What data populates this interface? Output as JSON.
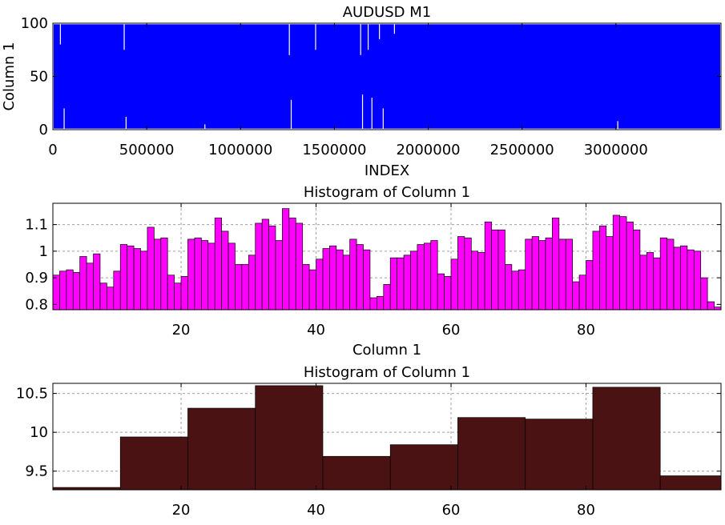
{
  "chart_data": [
    {
      "type": "area",
      "title": "AUDUSD M1",
      "xlabel": "INDEX",
      "ylabel": "Column 1",
      "xlim": [
        0,
        3560000
      ],
      "ylim": [
        0,
        100
      ],
      "x_ticks": [
        0,
        500000,
        1000000,
        1500000,
        2000000,
        2500000,
        3000000
      ],
      "y_ticks": [
        0,
        50,
        100
      ],
      "series_color": "#0000ff",
      "fill_range": [
        1,
        99
      ],
      "notes_gaps": [
        {
          "x": 40000,
          "from": 80,
          "to": 100
        },
        {
          "x": 60000,
          "from": 0,
          "to": 20
        },
        {
          "x": 380000,
          "from": 75,
          "to": 100
        },
        {
          "x": 390000,
          "from": 0,
          "to": 12
        },
        {
          "x": 810000,
          "from": 0,
          "to": 5
        },
        {
          "x": 1260000,
          "from": 70,
          "to": 100
        },
        {
          "x": 1270000,
          "from": 0,
          "to": 28
        },
        {
          "x": 1400000,
          "from": 75,
          "to": 100
        },
        {
          "x": 1640000,
          "from": 70,
          "to": 100
        },
        {
          "x": 1650000,
          "from": 0,
          "to": 33
        },
        {
          "x": 1680000,
          "from": 75,
          "to": 100
        },
        {
          "x": 1700000,
          "from": 0,
          "to": 30
        },
        {
          "x": 1740000,
          "from": 85,
          "to": 100
        },
        {
          "x": 1760000,
          "from": 0,
          "to": 20
        },
        {
          "x": 1820000,
          "from": 90,
          "to": 100
        },
        {
          "x": 3010000,
          "from": 0,
          "to": 8
        }
      ]
    },
    {
      "type": "bar",
      "title": "Histogram of Column 1",
      "xlabel": "Column 1",
      "ylabel": "",
      "xlim": [
        1,
        100
      ],
      "ylim": [
        0.78,
        1.18
      ],
      "x_ticks": [
        20,
        40,
        60,
        80
      ],
      "y_ticks": [
        0.8,
        0.9,
        1,
        1.1
      ],
      "y_tick_labels": [
        "0.8",
        "0.9",
        "1",
        "1.1"
      ],
      "bar_color": "#ff00ff",
      "bin_width": 1,
      "bin_start": 1,
      "values": [
        0.91,
        0.925,
        0.93,
        0.92,
        0.98,
        0.955,
        0.99,
        0.88,
        0.865,
        0.925,
        1.025,
        1.02,
        1.01,
        1.0,
        1.09,
        1.045,
        1.05,
        0.91,
        0.88,
        0.905,
        1.045,
        1.05,
        1.04,
        1.03,
        1.125,
        1.075,
        1.03,
        0.95,
        0.95,
        0.985,
        1.105,
        1.12,
        1.095,
        1.04,
        1.16,
        1.125,
        1.105,
        0.95,
        0.93,
        0.97,
        1.01,
        1.02,
        1.005,
        0.985,
        1.045,
        1.025,
        1.005,
        0.825,
        0.83,
        0.875,
        0.975,
        0.975,
        0.985,
        1.0,
        1.025,
        1.03,
        1.04,
        0.915,
        0.905,
        0.97,
        1.055,
        1.05,
        1.0,
        0.995,
        1.11,
        1.08,
        1.08,
        0.95,
        0.925,
        0.93,
        1.045,
        1.055,
        1.04,
        1.05,
        1.125,
        1.045,
        1.045,
        0.885,
        0.91,
        0.965,
        1.075,
        1.095,
        1.055,
        1.135,
        1.13,
        1.11,
        1.08,
        0.985,
        0.995,
        0.975,
        1.05,
        1.045,
        1.015,
        1.02,
        1.005,
        1.0,
        0.9,
        0.81,
        0.79,
        0.835
      ]
    },
    {
      "type": "bar",
      "title": "Histogram of Column 1",
      "xlabel": "",
      "ylabel": "",
      "xlim": [
        1,
        100
      ],
      "ylim": [
        9.26,
        10.63
      ],
      "x_ticks": [
        20,
        40,
        60,
        80
      ],
      "y_ticks": [
        9.5,
        10,
        10.5
      ],
      "y_tick_labels": [
        "9.5",
        "10",
        "10.5"
      ],
      "bar_color": "#4a1212",
      "bin_width": 10,
      "bin_start": 1,
      "values": [
        9.29,
        9.94,
        10.31,
        10.6,
        9.69,
        9.84,
        10.19,
        10.17,
        10.58,
        9.44
      ]
    }
  ]
}
